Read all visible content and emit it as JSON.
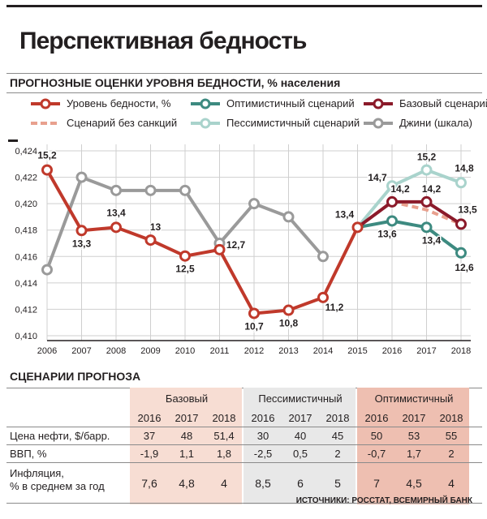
{
  "title": "Перспективная бедность",
  "chart_section_title": "ПРОГНОЗНЫЕ ОЦЕНКИ УРОВНЯ БЕДНОСТИ, % населения",
  "legend": [
    {
      "key": "poverty",
      "label": "Уровень бедности, %",
      "color": "#c0392b",
      "style": "marker"
    },
    {
      "key": "optimistic",
      "label": "Оптимистичный сценарий",
      "color": "#3d8a80",
      "style": "marker"
    },
    {
      "key": "base",
      "label": "Базовый сценарий",
      "color": "#8b1a2a",
      "style": "marker"
    },
    {
      "key": "nosanctions",
      "label": "Сценарий без санкций",
      "color": "#e8a08e",
      "style": "dashed"
    },
    {
      "key": "pessimistic",
      "label": "Пессимистичный сценарий",
      "color": "#a9d3cc",
      "style": "marker"
    },
    {
      "key": "gini",
      "label": "Джини (шкала)",
      "color": "#9a9a9a",
      "style": "marker"
    }
  ],
  "chart_data": {
    "type": "line",
    "x": [
      "2006",
      "2007",
      "2008",
      "2009",
      "2010",
      "2011",
      "2012",
      "2013",
      "2014",
      "2015",
      "2016",
      "2017",
      "2018"
    ],
    "y_axis": {
      "label": "",
      "ticks": [
        "0,424",
        "0,422",
        "0,420",
        "0,418",
        "0,416",
        "0,414",
        "0,412",
        "0,410"
      ],
      "ylim": [
        0.41,
        0.424
      ],
      "scale_series": "Джини (шкала)"
    },
    "poverty_scale": {
      "min": 10.0,
      "max": 15.8,
      "note": "poverty % plotted on same vertical span"
    },
    "series": [
      {
        "name": "Уровень бедности, %",
        "x": [
          "2006",
          "2007",
          "2008",
          "2009",
          "2010",
          "2011",
          "2012",
          "2013",
          "2014",
          "2015"
        ],
        "values": [
          15.2,
          13.3,
          13.4,
          13.0,
          12.5,
          12.7,
          10.7,
          10.8,
          11.2,
          13.4
        ],
        "labels": [
          "15,2",
          "13,3",
          "13,4",
          "13",
          "12,5",
          "12,7",
          "10,7",
          "10,8",
          "11,2",
          "13,4"
        ]
      },
      {
        "name": "Базовый сценарий",
        "x": [
          "2015",
          "2016",
          "2017",
          "2018"
        ],
        "values": [
          13.4,
          14.2,
          14.2,
          13.5
        ],
        "labels": [
          "",
          "14,2",
          "14,2",
          "13,5"
        ]
      },
      {
        "name": "Оптимистичный сценарий",
        "x": [
          "2015",
          "2016",
          "2017",
          "2018"
        ],
        "values": [
          13.4,
          13.6,
          13.4,
          12.6
        ],
        "labels": [
          "",
          "13,6",
          "13,4",
          "12,6"
        ]
      },
      {
        "name": "Пессимистичный сценарий",
        "x": [
          "2015",
          "2016",
          "2017",
          "2018"
        ],
        "values": [
          13.4,
          14.7,
          15.2,
          14.8
        ],
        "labels": [
          "",
          "14,7",
          "15,2",
          "14,8"
        ]
      },
      {
        "name": "Сценарий без санкций",
        "x": [
          "2015",
          "2016",
          "2017",
          "2018"
        ],
        "values": [
          13.4,
          14.2,
          13.95,
          13.5
        ],
        "labels": [
          "",
          "",
          "",
          ""
        ]
      },
      {
        "name": "Джини (шкала)",
        "x": [
          "2006",
          "2007",
          "2008",
          "2009",
          "2010",
          "2011",
          "2012",
          "2013",
          "2014"
        ],
        "values": [
          0.415,
          0.422,
          0.421,
          0.421,
          0.421,
          0.417,
          0.42,
          0.419,
          0.416
        ]
      }
    ]
  },
  "scenarios": {
    "section_title": "СЦЕНАРИИ ПРОГНОЗА",
    "groups": [
      {
        "name": "Базовый",
        "shade": "#f7ddd3",
        "years": [
          "2016",
          "2017",
          "2018"
        ]
      },
      {
        "name": "Пессимистичный",
        "shade": "#e8e8e8",
        "years": [
          "2016",
          "2017",
          "2018"
        ]
      },
      {
        "name": "Оптимистичный",
        "shade": "#eebfb1",
        "years": [
          "2016",
          "2017",
          "2018"
        ]
      }
    ],
    "rows": [
      {
        "label": "Цена нефти, $/барр.",
        "values": [
          "37",
          "48",
          "51,4",
          "30",
          "40",
          "45",
          "50",
          "53",
          "55"
        ]
      },
      {
        "label": "ВВП, %",
        "values": [
          "-1,9",
          "1,1",
          "1,8",
          "-2,5",
          "0,5",
          "2",
          "-0,7",
          "1,7",
          "2"
        ]
      },
      {
        "label_line1": "Инфляция,",
        "label_line2": "% в среднем за год",
        "values": [
          "7,6",
          "4,8",
          "4",
          "8,5",
          "6",
          "5",
          "7",
          "4,5",
          "4"
        ]
      }
    ]
  },
  "source": "ИСТОЧНИКИ: РОССТАТ, ВСЕМИРНЫЙ БАНК"
}
